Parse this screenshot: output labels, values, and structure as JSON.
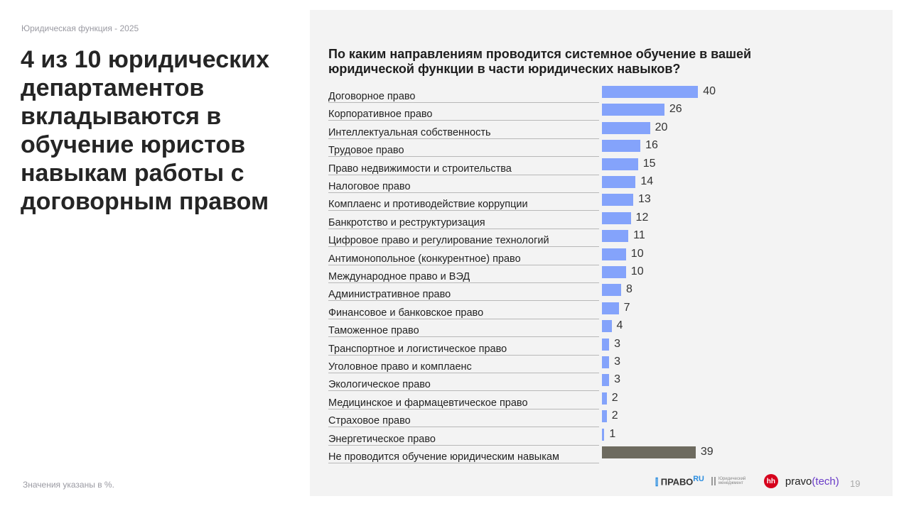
{
  "header": {
    "subtitle": "Юридическая функция - 2025",
    "headline": "4 из 10 юридических департаментов вкладываются в обучение юристов навыкам работы с договорным правом"
  },
  "footer": {
    "note": "Значения указаны в %.",
    "page": "19",
    "logos": {
      "pravo": "ПРАВО",
      "pravo_ru": "RU",
      "ym": "Юридический менеджмент",
      "hh": "hh",
      "pravotech_a": "pravo",
      "pravotech_b": "(tech)"
    }
  },
  "colors": {
    "bar": "#84a3fb",
    "bar_none": "#6d6a5f"
  },
  "chart_data": {
    "type": "bar",
    "orientation": "horizontal",
    "title": "По каким направлениям проводится системное обучение в вашей юридической функции в части юридических навыков?",
    "unit": "%",
    "categories": [
      "Договорное право",
      "Корпоративное право",
      "Интеллектуальная собственность",
      "Трудовое право",
      "Право недвижимости и строительства",
      "Налоговое право",
      "Комплаенс и противодействие коррупции",
      "Банкротство и реструктуризация",
      "Цифровое право и регулирование технологий",
      "Антимонопольное (конкурентное) право",
      "Международное право и ВЭД",
      "Административное право",
      "Финансовое и банковское право",
      "Таможенное право",
      "Транспортное и логистическое право",
      "Уголовное право и комплаенс",
      "Экологическое право",
      "Медицинское и фармацевтическое право",
      "Страховое право",
      "Энергетическое право",
      "Не проводится обучение юридическим навыкам"
    ],
    "values": [
      40,
      26,
      20,
      16,
      15,
      14,
      13,
      12,
      11,
      10,
      10,
      8,
      7,
      4,
      3,
      3,
      3,
      2,
      2,
      1,
      39
    ]
  }
}
